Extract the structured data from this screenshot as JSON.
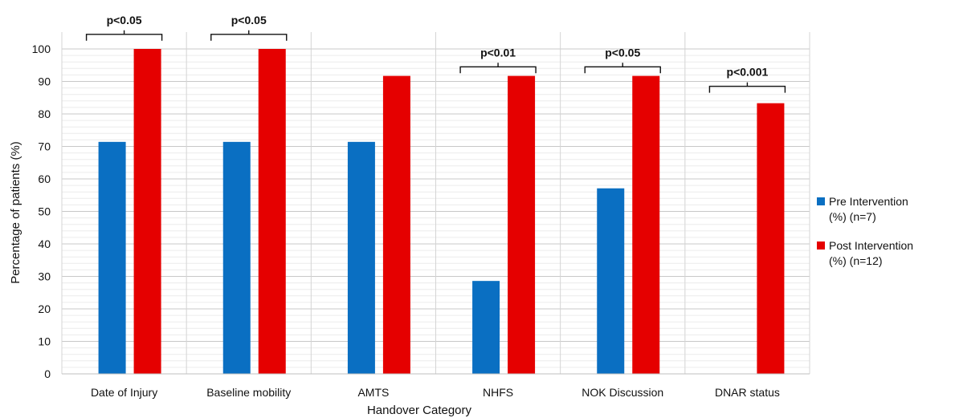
{
  "chart_data": {
    "type": "bar",
    "categories": [
      "Date of Injury",
      "Baseline mobility",
      "AMTS",
      "NHFS",
      "NOK Discussion",
      "DNAR status"
    ],
    "series": [
      {
        "name": "Pre Intervention (%) (n=7)",
        "values": [
          71.4,
          71.4,
          71.4,
          28.6,
          57.1,
          0
        ],
        "color": "#0a6fc2"
      },
      {
        "name": "Post Intervention (%) (n=12)",
        "values": [
          100,
          100,
          91.7,
          91.7,
          91.7,
          83.3
        ],
        "color": "#e50000"
      }
    ],
    "xlabel": "Handover Category",
    "ylabel": "Percentage of patients (%)",
    "ylim": [
      0,
      100
    ],
    "yticks": [
      "0",
      "10",
      "20",
      "30",
      "40",
      "50",
      "60",
      "70",
      "80",
      "90",
      "100"
    ],
    "grid": true,
    "legend_position": "right",
    "legend": [
      {
        "lines": [
          "Pre Intervention",
          "(%) (n=7)"
        ]
      },
      {
        "lines": [
          "Post Intervention",
          "(%) (n=12)"
        ]
      }
    ],
    "annotations": [
      {
        "category": "Date of Injury",
        "text": "p<0.05",
        "level": 104.5
      },
      {
        "category": "Baseline mobility",
        "text": "p<0.05",
        "level": 104.5
      },
      {
        "category": "NHFS",
        "text": "p<0.01",
        "level": 94.5
      },
      {
        "category": "NOK Discussion",
        "text": "p<0.05",
        "level": 94.5
      },
      {
        "category": "DNAR status",
        "text": "p<0.001",
        "level": 88.5
      }
    ]
  }
}
